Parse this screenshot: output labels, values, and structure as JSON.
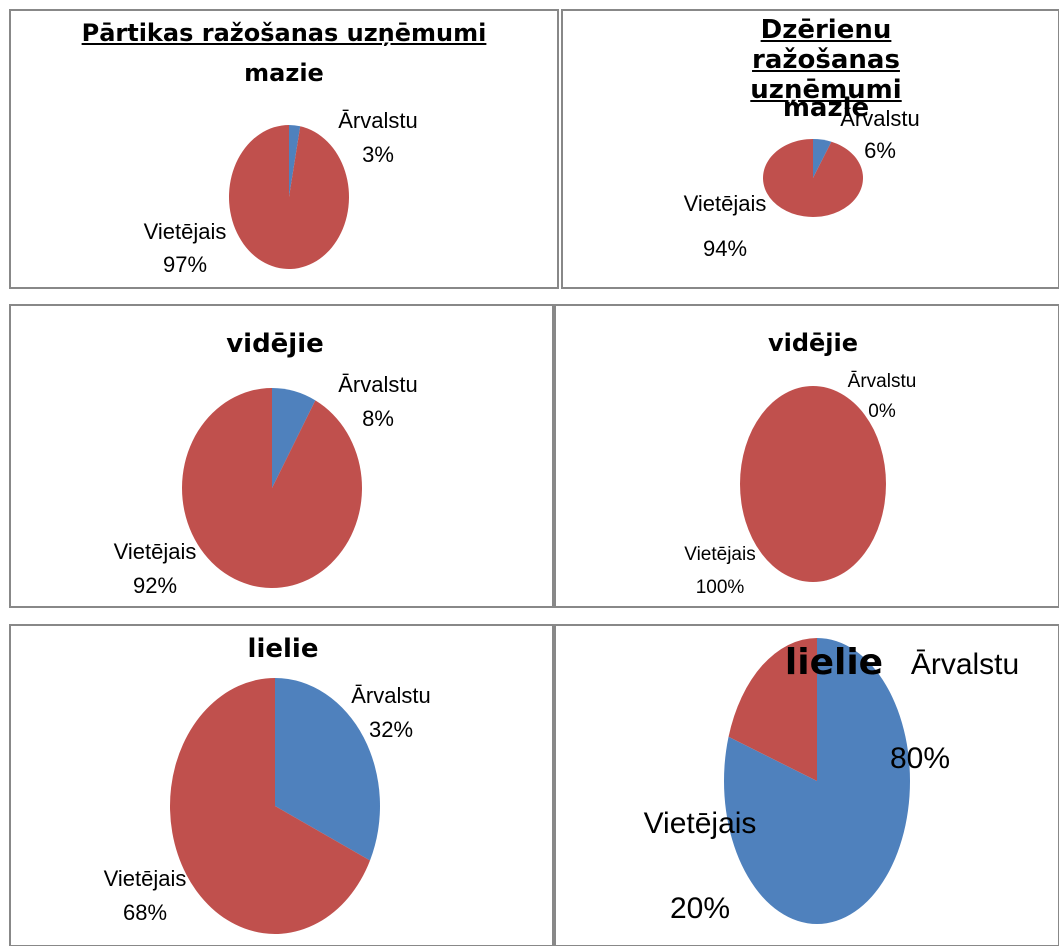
{
  "chart_data": [
    {
      "type": "pie",
      "title": "Pārtikas ražošanas uzņēmumi",
      "subtitle": "mazie",
      "categories": [
        "Ārvalstu",
        "Vietējais"
      ],
      "values": [
        3,
        97
      ],
      "value_labels": [
        "3%",
        "97%"
      ],
      "colors": [
        "#4f81bd",
        "#c0504d"
      ]
    },
    {
      "type": "pie",
      "title": "Dzērienu ražošanas uzņēmumi",
      "subtitle": "mazie",
      "categories": [
        "Ārvalstu",
        "Vietējais"
      ],
      "values": [
        6,
        94
      ],
      "value_labels": [
        "6%",
        "94%"
      ],
      "colors": [
        "#4f81bd",
        "#c0504d"
      ]
    },
    {
      "type": "pie",
      "title": "vidējie",
      "categories": [
        "Ārvalstu",
        "Vietējais"
      ],
      "values": [
        8,
        92
      ],
      "value_labels": [
        "8%",
        "92%"
      ],
      "colors": [
        "#4f81bd",
        "#c0504d"
      ]
    },
    {
      "type": "pie",
      "title": "vidējie",
      "categories": [
        "Ārvalstu",
        "Vietējais"
      ],
      "values": [
        0,
        100
      ],
      "value_labels": [
        "0%",
        "100%"
      ],
      "colors": [
        "#4f81bd",
        "#c0504d"
      ]
    },
    {
      "type": "pie",
      "title": "lielie",
      "categories": [
        "Ārvalstu",
        "Vietējais"
      ],
      "values": [
        32,
        68
      ],
      "value_labels": [
        "32%",
        "68%"
      ],
      "colors": [
        "#4f81bd",
        "#c0504d"
      ]
    },
    {
      "type": "pie",
      "title": "lielie",
      "categories": [
        "Ārvalstu",
        "Vietējais"
      ],
      "values": [
        80,
        20
      ],
      "value_labels": [
        "80%",
        "20%"
      ],
      "colors": [
        "#4f81bd",
        "#c0504d"
      ]
    }
  ]
}
